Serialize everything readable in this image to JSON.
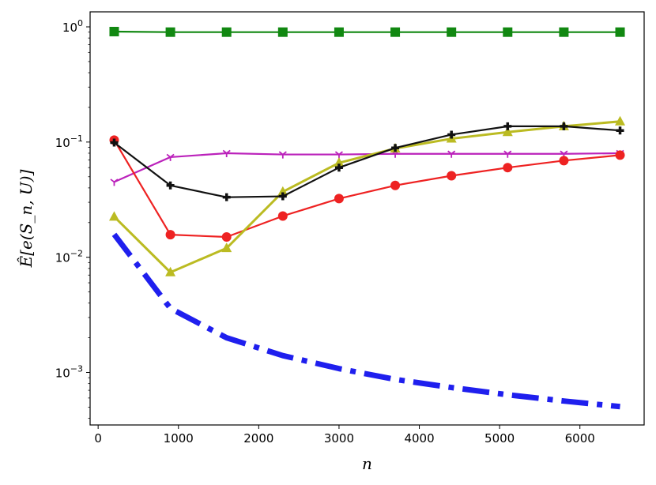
{
  "chart_data": {
    "type": "line",
    "xlabel": "n",
    "ylabel": "Ê[e(S_n, U)]",
    "yscale": "log",
    "xlim": [
      -100,
      6800
    ],
    "ylim": [
      0.00035,
      1.35
    ],
    "grid": false,
    "x_ticks": [
      0,
      1000,
      2000,
      3000,
      4000,
      5000,
      6000
    ],
    "x_tick_labels": [
      "0",
      "1000",
      "2000",
      "3000",
      "4000",
      "5000",
      "6000"
    ],
    "y_ticks": [
      0.001,
      0.01,
      0.1,
      1
    ],
    "y_tick_labels": [
      {
        "base": "10",
        "exp": "−3"
      },
      {
        "base": "10",
        "exp": "−2"
      },
      {
        "base": "10",
        "exp": "−1"
      },
      {
        "base": "10",
        "exp": "0"
      }
    ],
    "series": [
      {
        "color": "#1f1fee",
        "style": "dashdot",
        "marker": "none",
        "width": 7,
        "x": [
          200,
          900,
          1600,
          2300,
          3000,
          3700,
          4400,
          5100,
          5800,
          6500
        ],
        "y": [
          0.0158,
          0.0036,
          0.002,
          0.0014,
          0.00108,
          0.00087,
          0.00074,
          0.00064,
          0.000565,
          0.000505
        ]
      },
      {
        "color": "#118811",
        "style": "solid",
        "marker": "square",
        "width": 2.2,
        "x": [
          200,
          900,
          1600,
          2300,
          3000,
          3700,
          4400,
          5100,
          5800,
          6500
        ],
        "y": [
          0.91,
          0.9,
          0.9,
          0.9,
          0.9,
          0.9,
          0.9,
          0.9,
          0.9,
          0.9
        ]
      },
      {
        "color": "#bb22bb",
        "style": "solid",
        "marker": "tri",
        "width": 2.2,
        "x": [
          200,
          900,
          1600,
          2300,
          3000,
          3700,
          4400,
          5100,
          5800,
          6500
        ],
        "y": [
          0.045,
          0.074,
          0.08,
          0.078,
          0.078,
          0.079,
          0.079,
          0.079,
          0.079,
          0.08
        ]
      },
      {
        "color": "#ee2222",
        "style": "solid",
        "marker": "circle",
        "width": 2.2,
        "x": [
          200,
          900,
          1600,
          2300,
          3000,
          3700,
          4400,
          5100,
          5800,
          6500
        ],
        "y": [
          0.104,
          0.0157,
          0.015,
          0.0228,
          0.0323,
          0.042,
          0.051,
          0.06,
          0.069,
          0.077
        ]
      },
      {
        "color": "#bbbb22",
        "style": "solid",
        "marker": "triangle",
        "width": 3,
        "x": [
          200,
          900,
          1600,
          2300,
          3000,
          3700,
          4400,
          5100,
          5800,
          6500
        ],
        "y": [
          0.0225,
          0.0074,
          0.012,
          0.037,
          0.066,
          0.088,
          0.107,
          0.122,
          0.137,
          0.151
        ]
      },
      {
        "color": "#111111",
        "style": "solid",
        "marker": "plus",
        "width": 2.2,
        "x": [
          200,
          900,
          1600,
          2300,
          3000,
          3700,
          4400,
          5100,
          5800,
          6500
        ],
        "y": [
          0.099,
          0.042,
          0.0332,
          0.0338,
          0.06,
          0.089,
          0.116,
          0.137,
          0.137,
          0.126
        ]
      }
    ]
  }
}
